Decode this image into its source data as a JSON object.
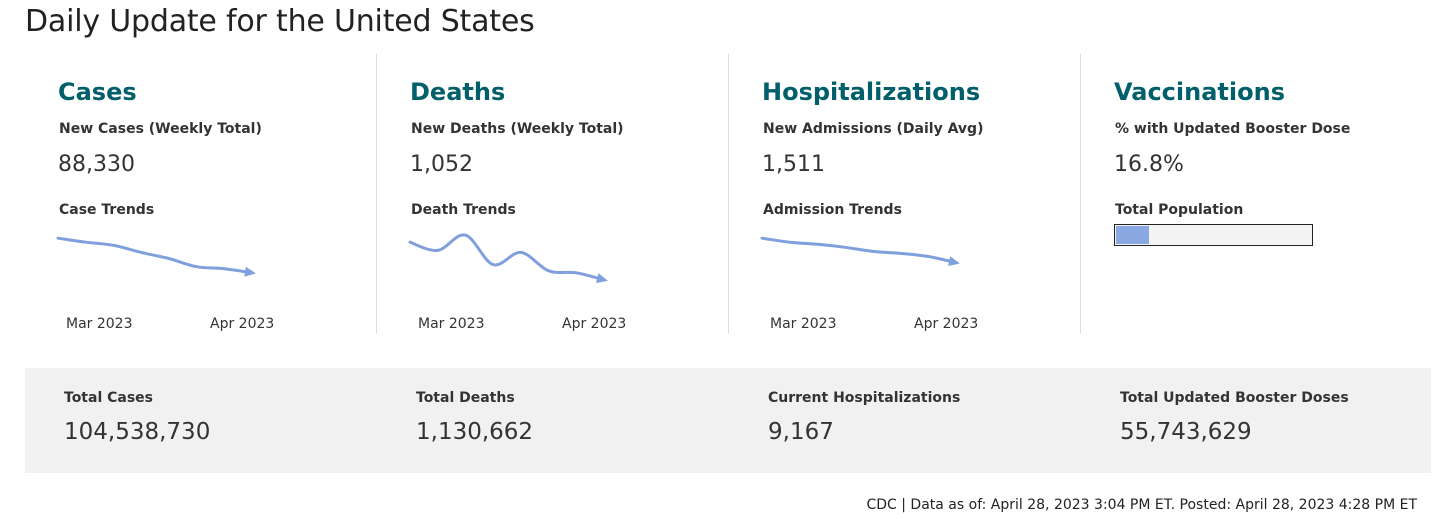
{
  "page": {
    "title": "Daily Update for the United States",
    "accent_color": "#005f6a",
    "sparkline_color": "#7f9fdd"
  },
  "panels": [
    {
      "title": "Cases",
      "metric_label": "New Cases (Weekly Total)",
      "metric_value": "88,330",
      "trend_label": "Case Trends",
      "axis": [
        "Mar 2023",
        "Apr 2023"
      ],
      "trend": [
        100,
        96,
        93,
        86,
        80,
        72,
        70,
        66
      ]
    },
    {
      "title": "Deaths",
      "metric_label": "New Deaths (Weekly Total)",
      "metric_value": "1,052",
      "trend_label": "Death Trends",
      "axis": [
        "Mar 2023",
        "Apr 2023"
      ],
      "trend": [
        96,
        88,
        103,
        74,
        86,
        68,
        66,
        59
      ]
    },
    {
      "title": "Hospitalizations",
      "metric_label": "New Admissions (Daily Avg)",
      "metric_value": "1,511",
      "trend_label": "Admission Trends",
      "axis": [
        "Mar 2023",
        "Apr 2023"
      ],
      "trend": [
        100,
        96,
        94,
        91,
        87,
        85,
        82,
        76
      ]
    },
    {
      "title": "Vaccinations",
      "metric_label": "% with Updated Booster Dose",
      "metric_value": "16.8%",
      "trend_label": "Total Population",
      "progress_fraction": 0.168
    }
  ],
  "totals": [
    {
      "label": "Total Cases",
      "value": "104,538,730"
    },
    {
      "label": "Total Deaths",
      "value": "1,130,662"
    },
    {
      "label": "Current Hospitalizations",
      "value": "9,167"
    },
    {
      "label": "Total Updated Booster Doses",
      "value": "55,743,629"
    }
  ],
  "footer": {
    "source_text": "CDC | Data as of: April 28, 2023 3:04 PM ET. Posted: April 28, 2023 4:28 PM ET"
  }
}
